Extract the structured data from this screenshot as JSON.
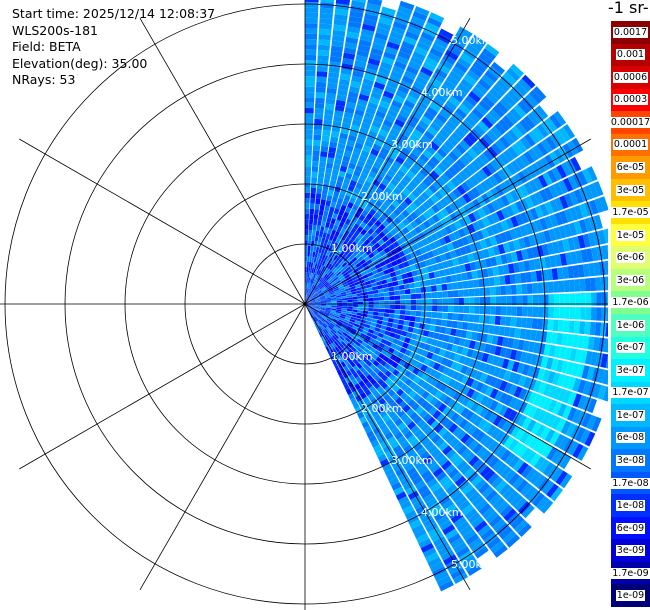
{
  "info": {
    "start_time": "Start time: 2025/12/14 12:08:37",
    "instrument": "WLS200s-181",
    "field": "Field: BETA",
    "elevation": "Elevation(deg): 35.00",
    "nrays": "NRays: 53"
  },
  "colorbar": {
    "unit_label": "-1 sr-",
    "levels": [
      {
        "label": "0.0017",
        "color": "#8b0000"
      },
      {
        "label": "0.001",
        "color": "#b50000"
      },
      {
        "label": "0.0006",
        "color": "#d80000"
      },
      {
        "label": "0.0003",
        "color": "#ff0000"
      },
      {
        "label": "0.00017",
        "color": "#ff4500"
      },
      {
        "label": "0.0001",
        "color": "#ff7000"
      },
      {
        "label": "6e-05",
        "color": "#ff9a00"
      },
      {
        "label": "3e-05",
        "color": "#ffbf00"
      },
      {
        "label": "1.7e-05",
        "color": "#ffe000"
      },
      {
        "label": "1e-05",
        "color": "#ffff40"
      },
      {
        "label": "6e-06",
        "color": "#e0ff70"
      },
      {
        "label": "3e-06",
        "color": "#b8ff80"
      },
      {
        "label": "1.7e-06",
        "color": "#80ff90"
      },
      {
        "label": "1e-06",
        "color": "#50ffc0"
      },
      {
        "label": "6e-07",
        "color": "#20ffe0"
      },
      {
        "label": "3e-07",
        "color": "#00f0ff"
      },
      {
        "label": "1.7e-07",
        "color": "#00d8ff"
      },
      {
        "label": "1e-07",
        "color": "#00b8ff"
      },
      {
        "label": "6e-08",
        "color": "#0098ff"
      },
      {
        "label": "3e-08",
        "color": "#0078ff"
      },
      {
        "label": "1.7e-08",
        "color": "#0058ff"
      },
      {
        "label": "1e-08",
        "color": "#0030ff"
      },
      {
        "label": "6e-09",
        "color": "#0010ff"
      },
      {
        "label": "3e-09",
        "color": "#0000d8"
      },
      {
        "label": "1.7e-09",
        "color": "#0000a8"
      },
      {
        "label": "1e-09",
        "color": "#000078"
      }
    ]
  },
  "chart_data": {
    "type": "heatmap",
    "projection": "polar PPI scan",
    "field": "BETA",
    "elevation_deg": 35.0,
    "n_rays": 53,
    "azimuth_range_deg": [
      0,
      155
    ],
    "range_rings_km": [
      1,
      2,
      3,
      4,
      5
    ],
    "max_range_km": 5.3,
    "ring_labels_upper": [
      "1.00km",
      "2.00km",
      "3.00km",
      "4.00km",
      "5.00km"
    ],
    "ring_labels_lower": [
      "1.00km",
      "2.00km",
      "3.00km",
      "4.00km",
      "5.00km"
    ],
    "spoke_angles_deg": [
      0,
      30,
      60,
      90,
      120,
      150,
      180,
      210,
      240,
      270,
      300,
      330
    ],
    "dominant_value_range": [
      "3e-08",
      "1e-07"
    ],
    "enhanced_band_km": [
      4.0,
      4.7
    ],
    "enhanced_band_azimuth_deg": [
      88,
      125
    ],
    "enhanced_band_value": "3e-07"
  }
}
